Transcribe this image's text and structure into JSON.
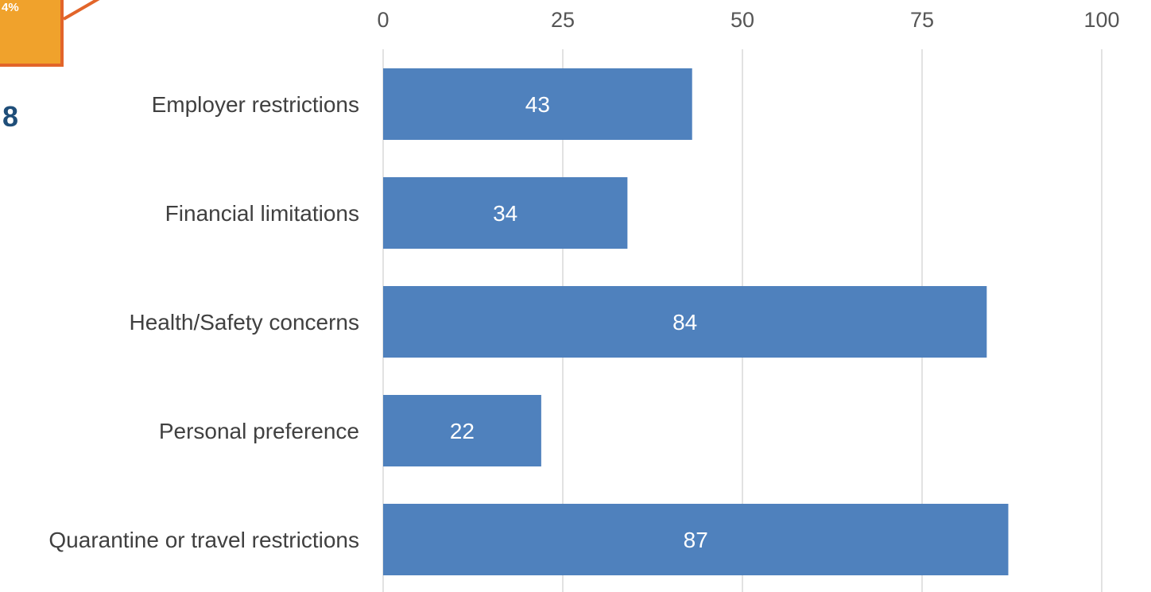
{
  "side_badge": {
    "text": "4%"
  },
  "side_number": "8",
  "colors": {
    "bar": "#4f81bd",
    "badge_fill": "#f0a22c",
    "badge_border": "#e2652a",
    "side_number": "#1f4e79"
  },
  "chart_data": {
    "type": "bar",
    "orientation": "horizontal",
    "categories": [
      "Employer restrictions",
      "Financial limitations",
      "Health/Safety concerns",
      "Personal preference",
      "Quarantine or travel restrictions"
    ],
    "values": [
      43,
      34,
      84,
      22,
      87
    ],
    "xlim": [
      0,
      100
    ],
    "xticks": [
      "0",
      "25",
      "50",
      "75",
      "100"
    ],
    "x_axis_position": "top",
    "grid": true,
    "data_labels": true
  }
}
